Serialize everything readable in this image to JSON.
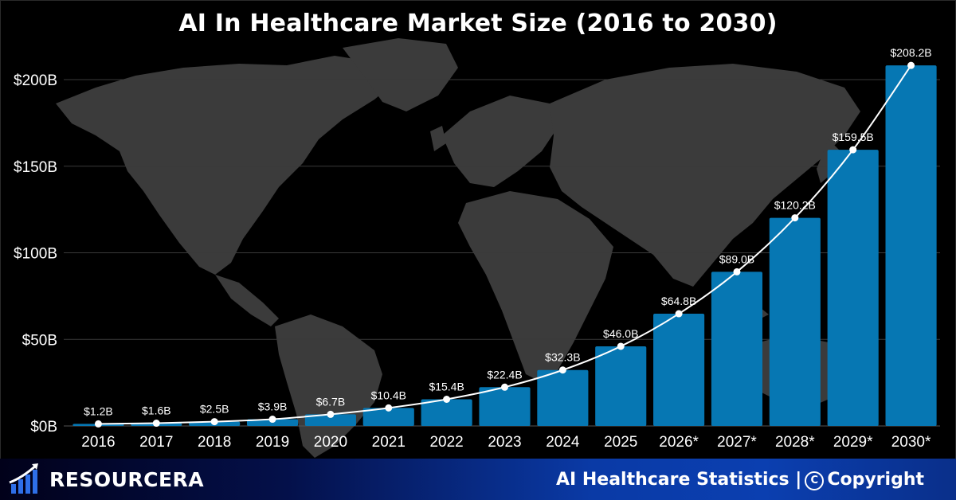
{
  "title": "AI In Healthcare Market Size (2016 to 2030)",
  "chart_data": {
    "type": "bar",
    "title": "AI In Healthcare Market Size (2016 to 2030)",
    "xlabel": "",
    "ylabel": "",
    "ylim": [
      0,
      200
    ],
    "yticks": [
      "$0B",
      "$50B",
      "$100B",
      "$150B",
      "$200B"
    ],
    "categories": [
      "2016",
      "2017",
      "2018",
      "2019",
      "2020",
      "2021",
      "2022",
      "2023",
      "2024",
      "2025",
      "2026*",
      "2027*",
      "2028*",
      "2029*",
      "2030*"
    ],
    "values": [
      1.2,
      1.6,
      2.5,
      3.9,
      6.7,
      10.4,
      15.4,
      22.4,
      32.3,
      46.0,
      64.8,
      89.0,
      120.2,
      159.5,
      208.2
    ],
    "labels": [
      "$1.2B",
      "$1.6B",
      "$2.5B",
      "$3.9B",
      "$6.7B",
      "$10.4B",
      "$15.4B",
      "$22.4B",
      "$32.3B",
      "$46.0B",
      "$64.8B",
      "$89.0B",
      "$120.2B",
      "$159.5B",
      "$208.2B"
    ],
    "trend_line": true,
    "grid": true,
    "colors": {
      "bar": "#0677b3",
      "line": "#ffffff",
      "grid": "#3a3a3a",
      "map": "#3b3b3b"
    }
  },
  "footer": {
    "brand": "RESOURCERA",
    "left_text": "AI Healthcare Statistics |",
    "copy_symbol": "C",
    "right_text": "Copyright"
  }
}
